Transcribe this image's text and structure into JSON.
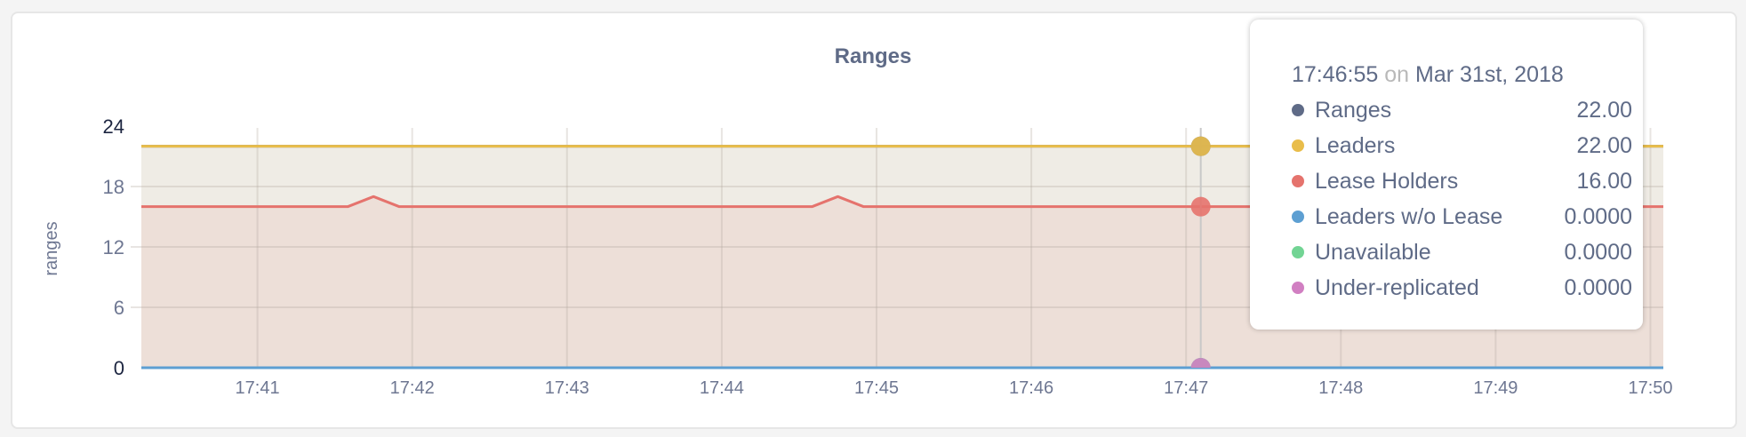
{
  "chart_data": {
    "type": "area",
    "title": "Ranges",
    "ylabel": "ranges",
    "xlabel": "",
    "ylim": [
      0,
      24
    ],
    "yticks": [
      "0",
      "6",
      "12",
      "18",
      "24"
    ],
    "xlim": [
      "17:40:15",
      "17:50:05"
    ],
    "xticks": [
      "17:41",
      "17:42",
      "17:43",
      "17:44",
      "17:45",
      "17:46",
      "17:47",
      "17:48",
      "17:49",
      "17:50"
    ],
    "grid": true,
    "series": [
      {
        "name": "Ranges",
        "color": "#5f6b87",
        "points": [
          [
            "17:40:15",
            22
          ],
          [
            "17:50:05",
            22
          ]
        ]
      },
      {
        "name": "Leaders",
        "color": "#e9bd4a",
        "fill": "#efece5",
        "points": [
          [
            "17:40:15",
            22
          ],
          [
            "17:50:05",
            22
          ]
        ]
      },
      {
        "name": "Lease Holders",
        "color": "#e5736d",
        "fill": "#eddfd8",
        "points": [
          [
            "17:40:15",
            16
          ],
          [
            "17:41:35",
            16
          ],
          [
            "17:41:45",
            17
          ],
          [
            "17:41:55",
            16
          ],
          [
            "17:44:35",
            16
          ],
          [
            "17:44:45",
            17
          ],
          [
            "17:44:55",
            16
          ],
          [
            "17:50:05",
            16
          ]
        ]
      },
      {
        "name": "Leaders w/o Lease",
        "color": "#5d9fd2",
        "points": [
          [
            "17:40:15",
            0
          ],
          [
            "17:50:05",
            0
          ]
        ]
      },
      {
        "name": "Unavailable",
        "color": "#72d494",
        "points": [
          [
            "17:40:15",
            0
          ],
          [
            "17:50:05",
            0
          ]
        ]
      },
      {
        "name": "Under-replicated",
        "color": "#d17fc2",
        "points": [
          [
            "17:40:15",
            0
          ],
          [
            "17:50:05",
            0
          ]
        ]
      }
    ]
  },
  "tooltip": {
    "time": "17:46:55",
    "on": "on",
    "date": "Mar 31st, 2018",
    "rows": [
      {
        "label": "Ranges",
        "value": "22.00",
        "color": "#5f6b87"
      },
      {
        "label": "Leaders",
        "value": "22.00",
        "color": "#e9bd4a"
      },
      {
        "label": "Lease Holders",
        "value": "16.00",
        "color": "#e5736d"
      },
      {
        "label": "Leaders w/o Lease",
        "value": "0.0000",
        "color": "#5d9fd2"
      },
      {
        "label": "Unavailable",
        "value": "0.0000",
        "color": "#72d494"
      },
      {
        "label": "Under-replicated",
        "value": "0.0000",
        "color": "#d17fc2"
      }
    ]
  }
}
